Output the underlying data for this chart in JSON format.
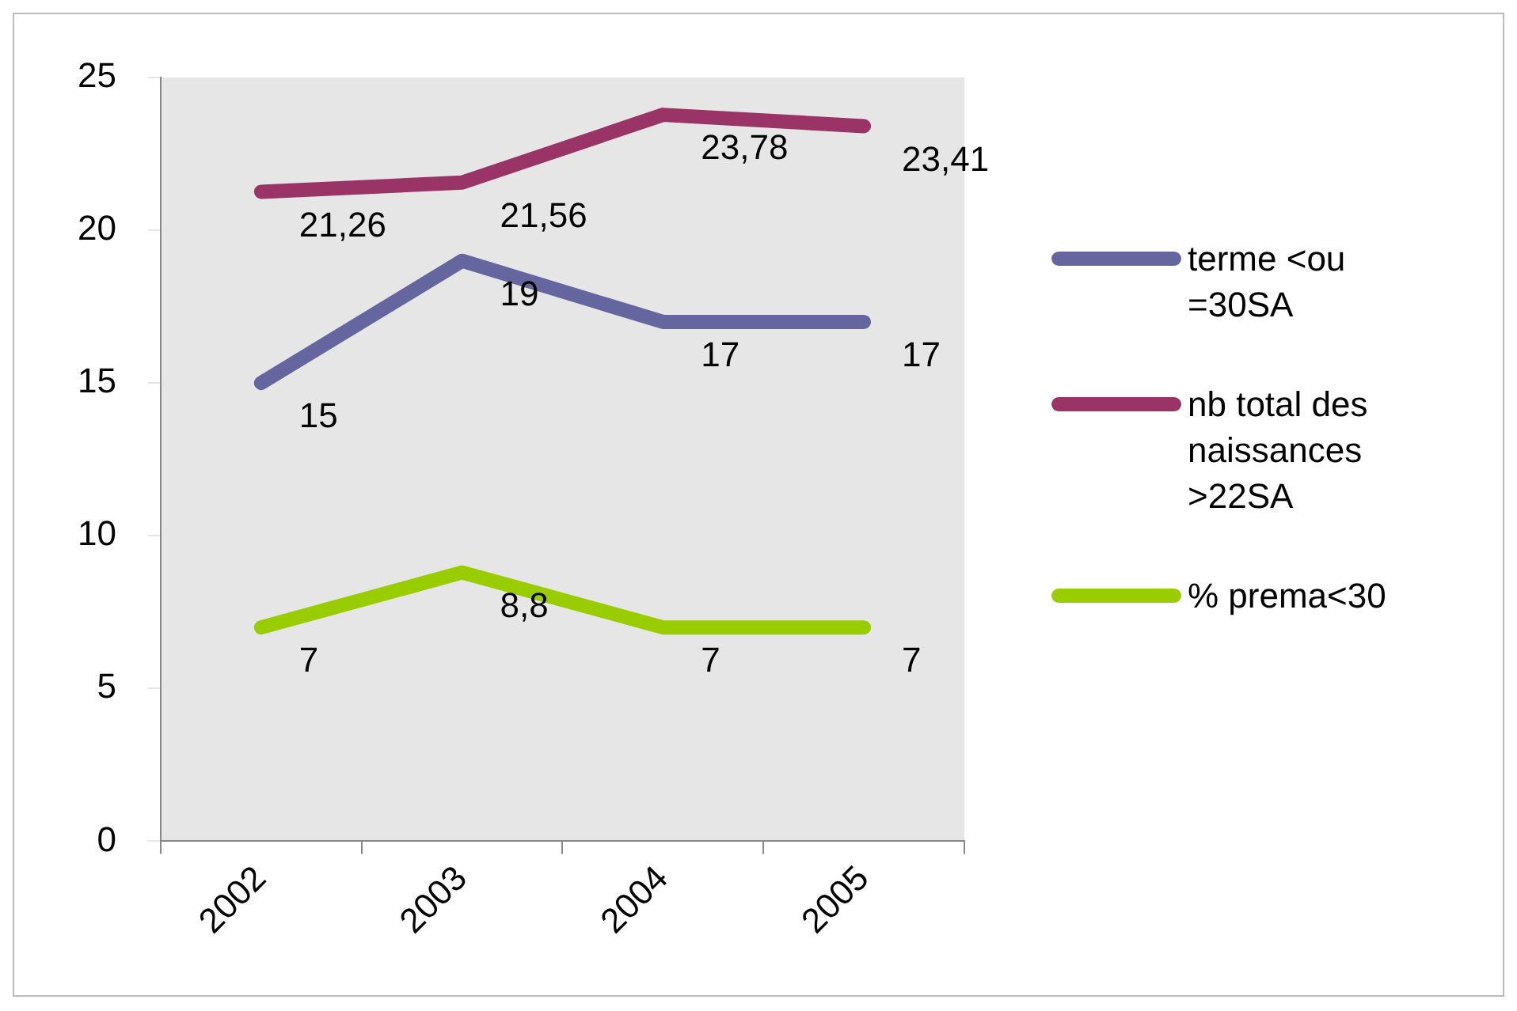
{
  "chart_data": {
    "type": "line",
    "categories": [
      "2002",
      "2003",
      "2004",
      "2005"
    ],
    "series": [
      {
        "name": "terme <ou =30SA",
        "color": "#6566a0",
        "values": [
          15,
          19,
          17,
          17
        ],
        "value_labels": [
          "15",
          "19",
          "17",
          "17"
        ]
      },
      {
        "name": "nb total des naissances >22SA",
        "color": "#9b3466",
        "values": [
          21.26,
          21.56,
          23.78,
          23.41
        ],
        "value_labels": [
          "21,26",
          "21,56",
          "23,78",
          "23,41"
        ]
      },
      {
        "name": "% prema<30",
        "color": "#9acd00",
        "values": [
          7,
          8.8,
          7,
          7
        ],
        "value_labels": [
          "7",
          "8,8",
          "7",
          "7"
        ]
      }
    ],
    "ylim": [
      0,
      25
    ],
    "yticks": [
      0,
      5,
      10,
      15,
      20,
      25
    ],
    "grid": false,
    "legend": "right",
    "marker": "none",
    "line_style": "solid"
  }
}
